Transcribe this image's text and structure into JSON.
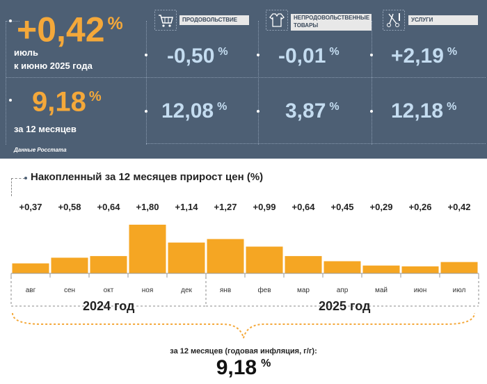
{
  "header": {
    "monthly_value": "+0,42",
    "monthly_unit": "%",
    "monthly_label_1": "июль",
    "monthly_label_2": "к июню 2025 года",
    "annual_value": "9,18",
    "annual_unit": "%",
    "annual_label": "за 12 месяцев",
    "source": "Данные Росстата"
  },
  "categories": [
    {
      "label": "ПРОДОВОЛЬСТВИЕ",
      "monthly": "-0,50",
      "annual": "12,08",
      "icon": "shopping-cart-icon"
    },
    {
      "label": "НЕПРОДОВОЛЬСТВЕННЫЕ ТОВАРЫ",
      "monthly": "-0,01",
      "annual": "3,87",
      "icon": "clothing-icon"
    },
    {
      "label": "УСЛУГИ",
      "monthly": "+2,19",
      "annual": "12,18",
      "icon": "scissors-comb-icon"
    }
  ],
  "unit": "%",
  "chart_data": {
    "type": "bar",
    "title": "Накопленный за 12 месяцев прирост цен (%)",
    "categories": [
      "авг",
      "сен",
      "окт",
      "ноя",
      "дек",
      "янв",
      "фев",
      "мар",
      "апр",
      "май",
      "июн",
      "июл"
    ],
    "values": [
      0.37,
      0.58,
      0.64,
      1.8,
      1.14,
      1.27,
      0.99,
      0.64,
      0.45,
      0.29,
      0.26,
      0.42
    ],
    "value_labels": [
      "+0,37",
      "+0,58",
      "+0,64",
      "+1,80",
      "+1,14",
      "+1,27",
      "+0,99",
      "+0,64",
      "+0,45",
      "+0,29",
      "+0,26",
      "+0,42"
    ],
    "years": [
      {
        "label": "2024 год",
        "from": 0,
        "to": 4
      },
      {
        "label": "2025 год",
        "from": 5,
        "to": 11
      }
    ],
    "ylim": [
      0,
      1.8
    ],
    "bar_color": "#f5a623"
  },
  "summary": {
    "label": "за 12 месяцев (годовая инфляция, г/г):",
    "value": "9,18",
    "unit": "%"
  },
  "colors": {
    "panel": "#4d5f74",
    "accent": "#f4a83a",
    "light_blue": "#c4dcf0"
  }
}
